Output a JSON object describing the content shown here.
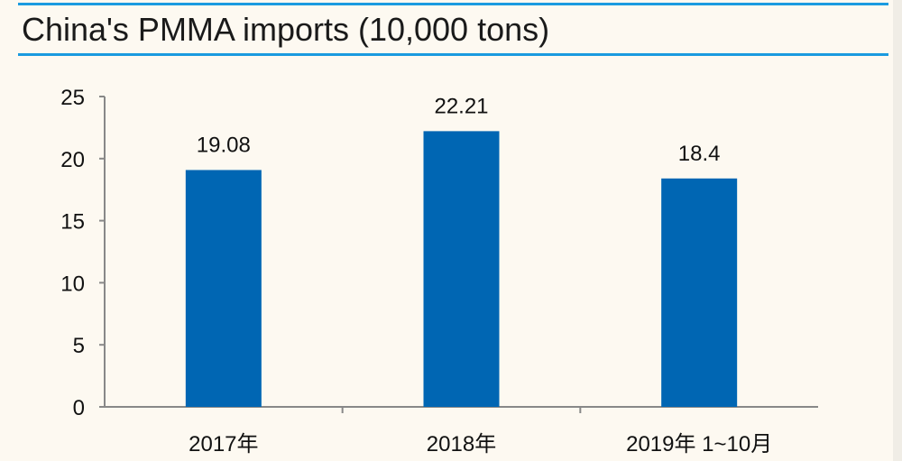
{
  "chart_data": {
    "type": "bar",
    "title": "China's PMMA imports (10,000 tons)",
    "categories": [
      "2017年",
      "2018年",
      "2019年 1~10月"
    ],
    "values": [
      19.08,
      22.21,
      18.4
    ],
    "data_labels": [
      "19.08",
      "22.21",
      "18.4"
    ],
    "ylim": [
      0,
      25
    ],
    "yticks": [
      0,
      5,
      10,
      15,
      20,
      25
    ],
    "grid": false,
    "bar_color": "#0066b3",
    "accent_color": "#1a9be0"
  }
}
